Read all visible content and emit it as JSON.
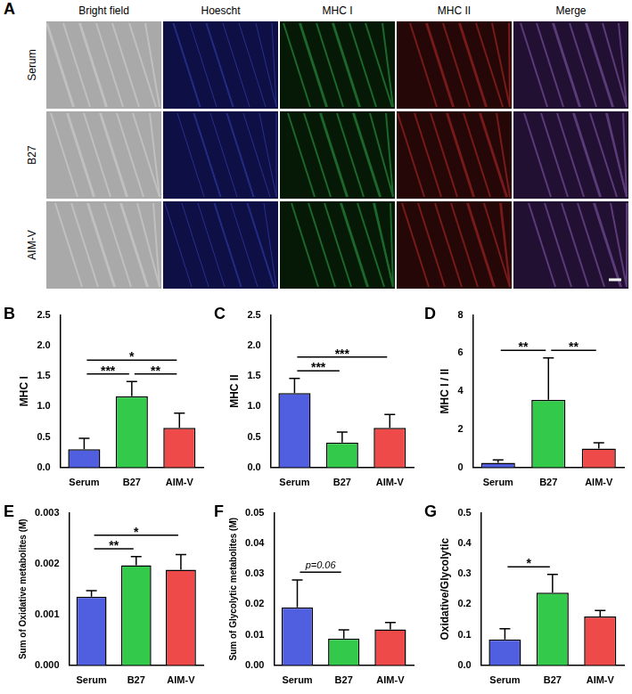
{
  "image_panel": {
    "panel_label": "A",
    "columns": [
      "Bright field",
      "Hoescht",
      "MHC I",
      "MHC II",
      "Merge"
    ],
    "rows": [
      "Serum",
      "B27",
      "AIM-V"
    ]
  },
  "chart_data": [
    {
      "type": "bar",
      "panel_label": "B",
      "y_label": "MHC I",
      "categories": [
        "Serum",
        "B27",
        "AIM-V"
      ],
      "values": [
        0.3,
        1.17,
        0.65
      ],
      "errors": [
        0.18,
        0.24,
        0.24
      ],
      "colors": [
        "#4f5fe0",
        "#33c94a",
        "#ef4a4a"
      ],
      "ylim": [
        0,
        2.5
      ],
      "yticks": [
        {
          "value": 0,
          "label": "0.0"
        },
        {
          "value": 0.5,
          "label": "0.5"
        },
        {
          "value": 1,
          "label": "1.0"
        },
        {
          "value": 1.5,
          "label": "1.5"
        },
        {
          "value": 2,
          "label": "2.0"
        },
        {
          "value": 2.5,
          "label": "2.5"
        }
      ],
      "grid": false,
      "annotations": [
        {
          "between": [
            "Serum",
            "B27"
          ],
          "text": "***"
        },
        {
          "between": [
            "B27",
            "AIM-V"
          ],
          "text": "**"
        },
        {
          "between": [
            "Serum",
            "AIM-V"
          ],
          "text": "*"
        }
      ]
    },
    {
      "type": "bar",
      "panel_label": "C",
      "y_label": "MHC II",
      "categories": [
        "Serum",
        "B27",
        "AIM-V"
      ],
      "values": [
        1.22,
        0.41,
        0.65
      ],
      "errors": [
        0.24,
        0.17,
        0.22
      ],
      "colors": [
        "#4f5fe0",
        "#33c94a",
        "#ef4a4a"
      ],
      "ylim": [
        0,
        2.5
      ],
      "yticks": [
        {
          "value": 0,
          "label": "0.0"
        },
        {
          "value": 0.5,
          "label": "0.5"
        },
        {
          "value": 1,
          "label": "1.0"
        },
        {
          "value": 1.5,
          "label": "1.5"
        },
        {
          "value": 2,
          "label": "2.0"
        },
        {
          "value": 2.5,
          "label": "2.5"
        }
      ],
      "grid": false,
      "annotations": [
        {
          "between": [
            "Serum",
            "B27"
          ],
          "text": "***"
        },
        {
          "between": [
            "Serum",
            "AIM-V"
          ],
          "text": "***"
        }
      ]
    },
    {
      "type": "bar",
      "panel_label": "D",
      "y_label": "MHC I / II",
      "categories": [
        "Serum",
        "B27",
        "AIM-V"
      ],
      "values": [
        0.25,
        3.55,
        1.0
      ],
      "errors": [
        0.15,
        2.2,
        0.3
      ],
      "colors": [
        "#4f5fe0",
        "#33c94a",
        "#ef4a4a"
      ],
      "ylim": [
        0,
        8
      ],
      "yticks": [
        0,
        2,
        4,
        6,
        8
      ],
      "grid": false,
      "annotations": [
        {
          "between": [
            "Serum",
            "B27"
          ],
          "text": "**"
        },
        {
          "between": [
            "B27",
            "AIM-V"
          ],
          "text": "**"
        }
      ]
    },
    {
      "type": "bar",
      "panel_label": "E",
      "y_label": "Sum of Oxidative metabolites (M)",
      "categories": [
        "Serum",
        "B27",
        "AIM-V"
      ],
      "values": [
        0.00135,
        0.00197,
        0.00188
      ],
      "errors": [
        0.00012,
        0.00017,
        0.0003
      ],
      "colors": [
        "#4f5fe0",
        "#33c94a",
        "#ef4a4a"
      ],
      "ylim": [
        0,
        0.003
      ],
      "yticks": [
        {
          "value": 0,
          "label": "0.000"
        },
        {
          "value": 0.001,
          "label": "0.001"
        },
        {
          "value": 0.002,
          "label": "0.002"
        },
        {
          "value": 0.003,
          "label": "0.003"
        }
      ],
      "grid": false,
      "annotations": [
        {
          "between": [
            "Serum",
            "B27"
          ],
          "text": "**"
        },
        {
          "between": [
            "Serum",
            "AIM-V"
          ],
          "text": "*"
        }
      ]
    },
    {
      "type": "bar",
      "panel_label": "F",
      "y_label": "Sum of Glycolytic metabolites (M)",
      "categories": [
        "Serum",
        "B27",
        "AIM-V"
      ],
      "values": [
        0.019,
        0.0088,
        0.0118
      ],
      "errors": [
        0.009,
        0.0028,
        0.0022
      ],
      "colors": [
        "#4f5fe0",
        "#33c94a",
        "#ef4a4a"
      ],
      "ylim": [
        0,
        0.05
      ],
      "yticks": [
        {
          "value": 0,
          "label": "0.00"
        },
        {
          "value": 0.01,
          "label": "0.01"
        },
        {
          "value": 0.02,
          "label": "0.02"
        },
        {
          "value": 0.03,
          "label": "0.03"
        },
        {
          "value": 0.04,
          "label": "0.04"
        },
        {
          "value": 0.05,
          "label": "0.05"
        }
      ],
      "grid": false,
      "annotations": [
        {
          "between": [
            "Serum",
            "B27"
          ],
          "text": "p=0.06"
        }
      ]
    },
    {
      "type": "bar",
      "panel_label": "G",
      "y_label": "Oxidative/Glycolytic",
      "categories": [
        "Serum",
        "B27",
        "AIM-V"
      ],
      "values": [
        0.085,
        0.238,
        0.16
      ],
      "errors": [
        0.035,
        0.06,
        0.02
      ],
      "colors": [
        "#4f5fe0",
        "#33c94a",
        "#ef4a4a"
      ],
      "ylim": [
        0,
        0.5
      ],
      "yticks": [
        {
          "value": 0,
          "label": "0.0"
        },
        {
          "value": 0.1,
          "label": "0.1"
        },
        {
          "value": 0.2,
          "label": "0.2"
        },
        {
          "value": 0.3,
          "label": "0.3"
        },
        {
          "value": 0.4,
          "label": "0.4"
        },
        {
          "value": 0.5,
          "label": "0.5"
        }
      ],
      "grid": false,
      "annotations": [
        {
          "between": [
            "Serum",
            "B27"
          ],
          "text": "*"
        }
      ]
    }
  ]
}
